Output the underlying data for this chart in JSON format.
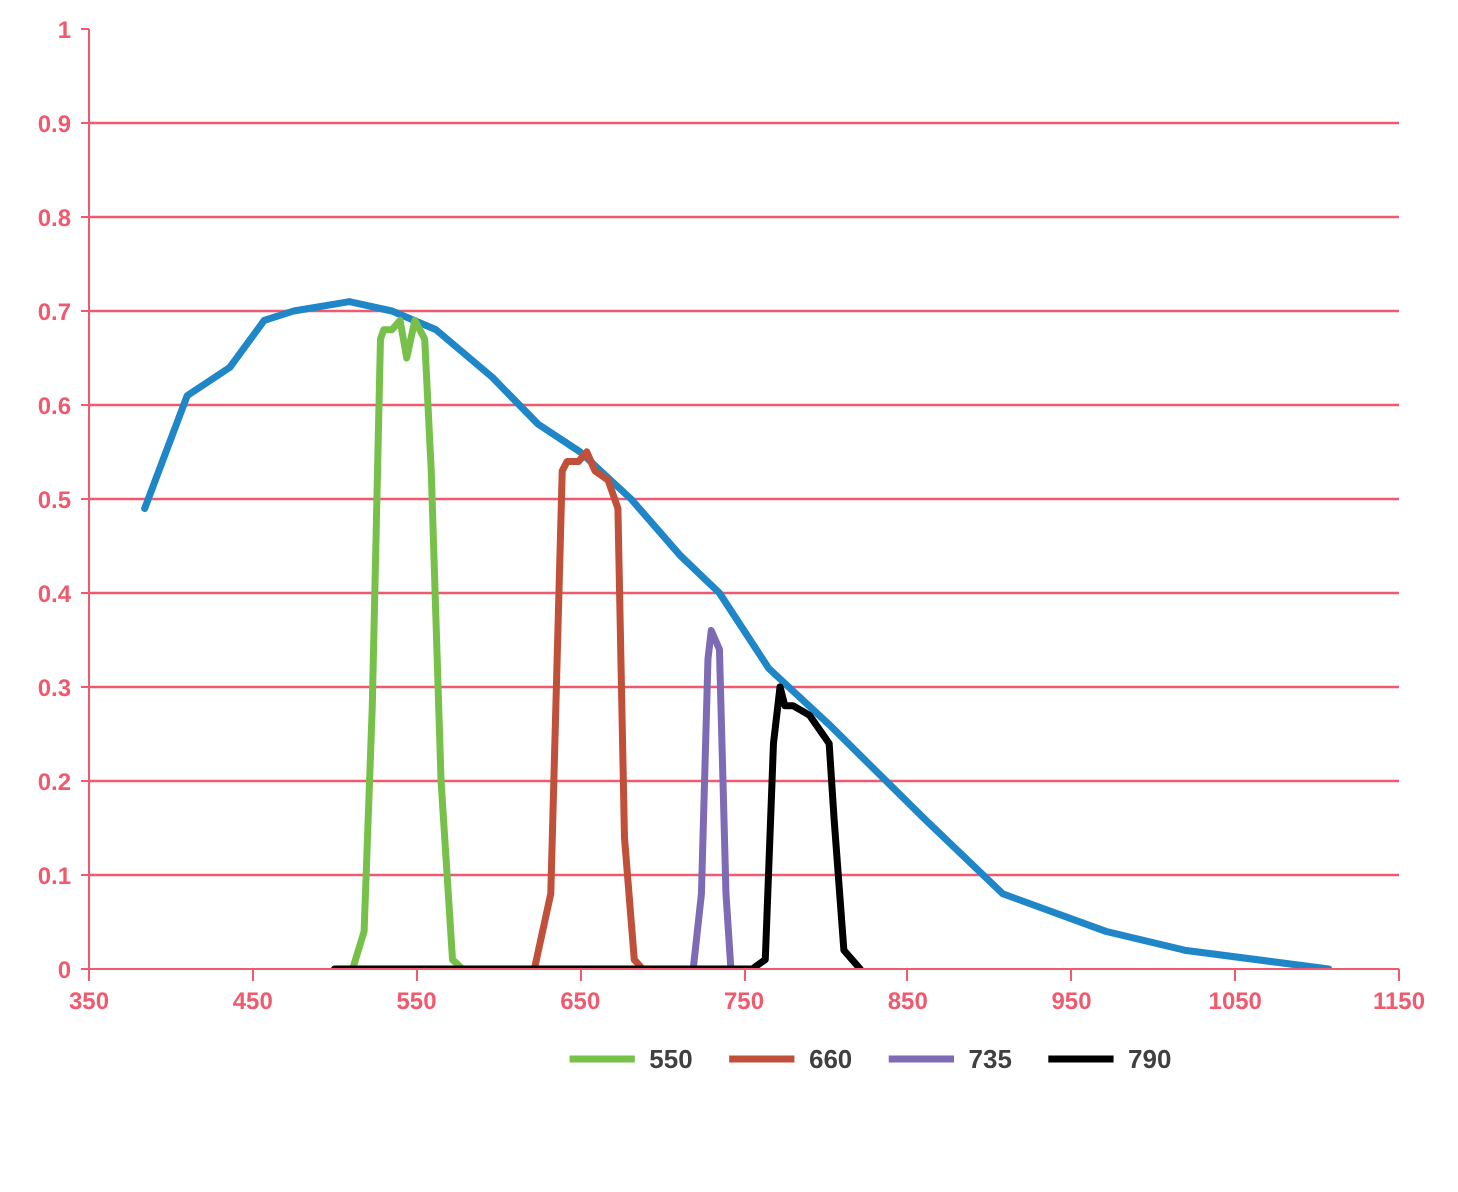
{
  "chart_data": {
    "type": "line",
    "xlim": [
      350,
      1150
    ],
    "ylim": [
      0,
      1
    ],
    "xticks": [
      350,
      450,
      550,
      650,
      750,
      850,
      950,
      1050,
      1150
    ],
    "yticks": [
      0,
      0.1,
      0.2,
      0.3,
      0.4,
      0.5,
      0.6,
      0.7,
      0.8,
      0.9,
      1
    ],
    "grid": "y",
    "legend": "bottom",
    "marker": "none",
    "line_style": "solid",
    "series": [
      {
        "color": "#1f87c8",
        "x": [
          384,
          410,
          436,
          457,
          475,
          509,
          535,
          562,
          596,
          624,
          650,
          681,
          711,
          735,
          765,
          802,
          860,
          908,
          971,
          1019,
          1107
        ],
        "values": [
          0.49,
          0.61,
          0.64,
          0.69,
          0.7,
          0.71,
          0.7,
          0.68,
          0.63,
          0.58,
          0.55,
          0.5,
          0.44,
          0.4,
          0.32,
          0.26,
          0.16,
          0.08,
          0.04,
          0.02,
          0
        ]
      },
      {
        "name": "550",
        "color": "#77c14b",
        "x": [
          511,
          518,
          523,
          528,
          530,
          535,
          540,
          544,
          549,
          555,
          559,
          565,
          572,
          578
        ],
        "values": [
          0,
          0.04,
          0.28,
          0.67,
          0.68,
          0.68,
          0.69,
          0.65,
          0.69,
          0.67,
          0.53,
          0.2,
          0.01,
          0
        ]
      },
      {
        "name": "660",
        "color": "#c0503a",
        "x": [
          622,
          632,
          639,
          642,
          649,
          654,
          659,
          667,
          673,
          677,
          683,
          688
        ],
        "values": [
          0,
          0.08,
          0.53,
          0.54,
          0.54,
          0.55,
          0.53,
          0.52,
          0.49,
          0.14,
          0.01,
          0
        ]
      },
      {
        "name": "735",
        "color": "#7e6bb5",
        "x": [
          719,
          724,
          728,
          730,
          735,
          739,
          742
        ],
        "values": [
          0,
          0.08,
          0.33,
          0.36,
          0.34,
          0.08,
          0
        ]
      },
      {
        "name": "790",
        "color": "#000000",
        "x": [
          500,
          755,
          763,
          768,
          772,
          775,
          780,
          790,
          802,
          805,
          811,
          821
        ],
        "values": [
          0,
          0,
          0.01,
          0.24,
          0.3,
          0.28,
          0.28,
          0.27,
          0.24,
          0.16,
          0.02,
          0
        ]
      }
    ]
  }
}
